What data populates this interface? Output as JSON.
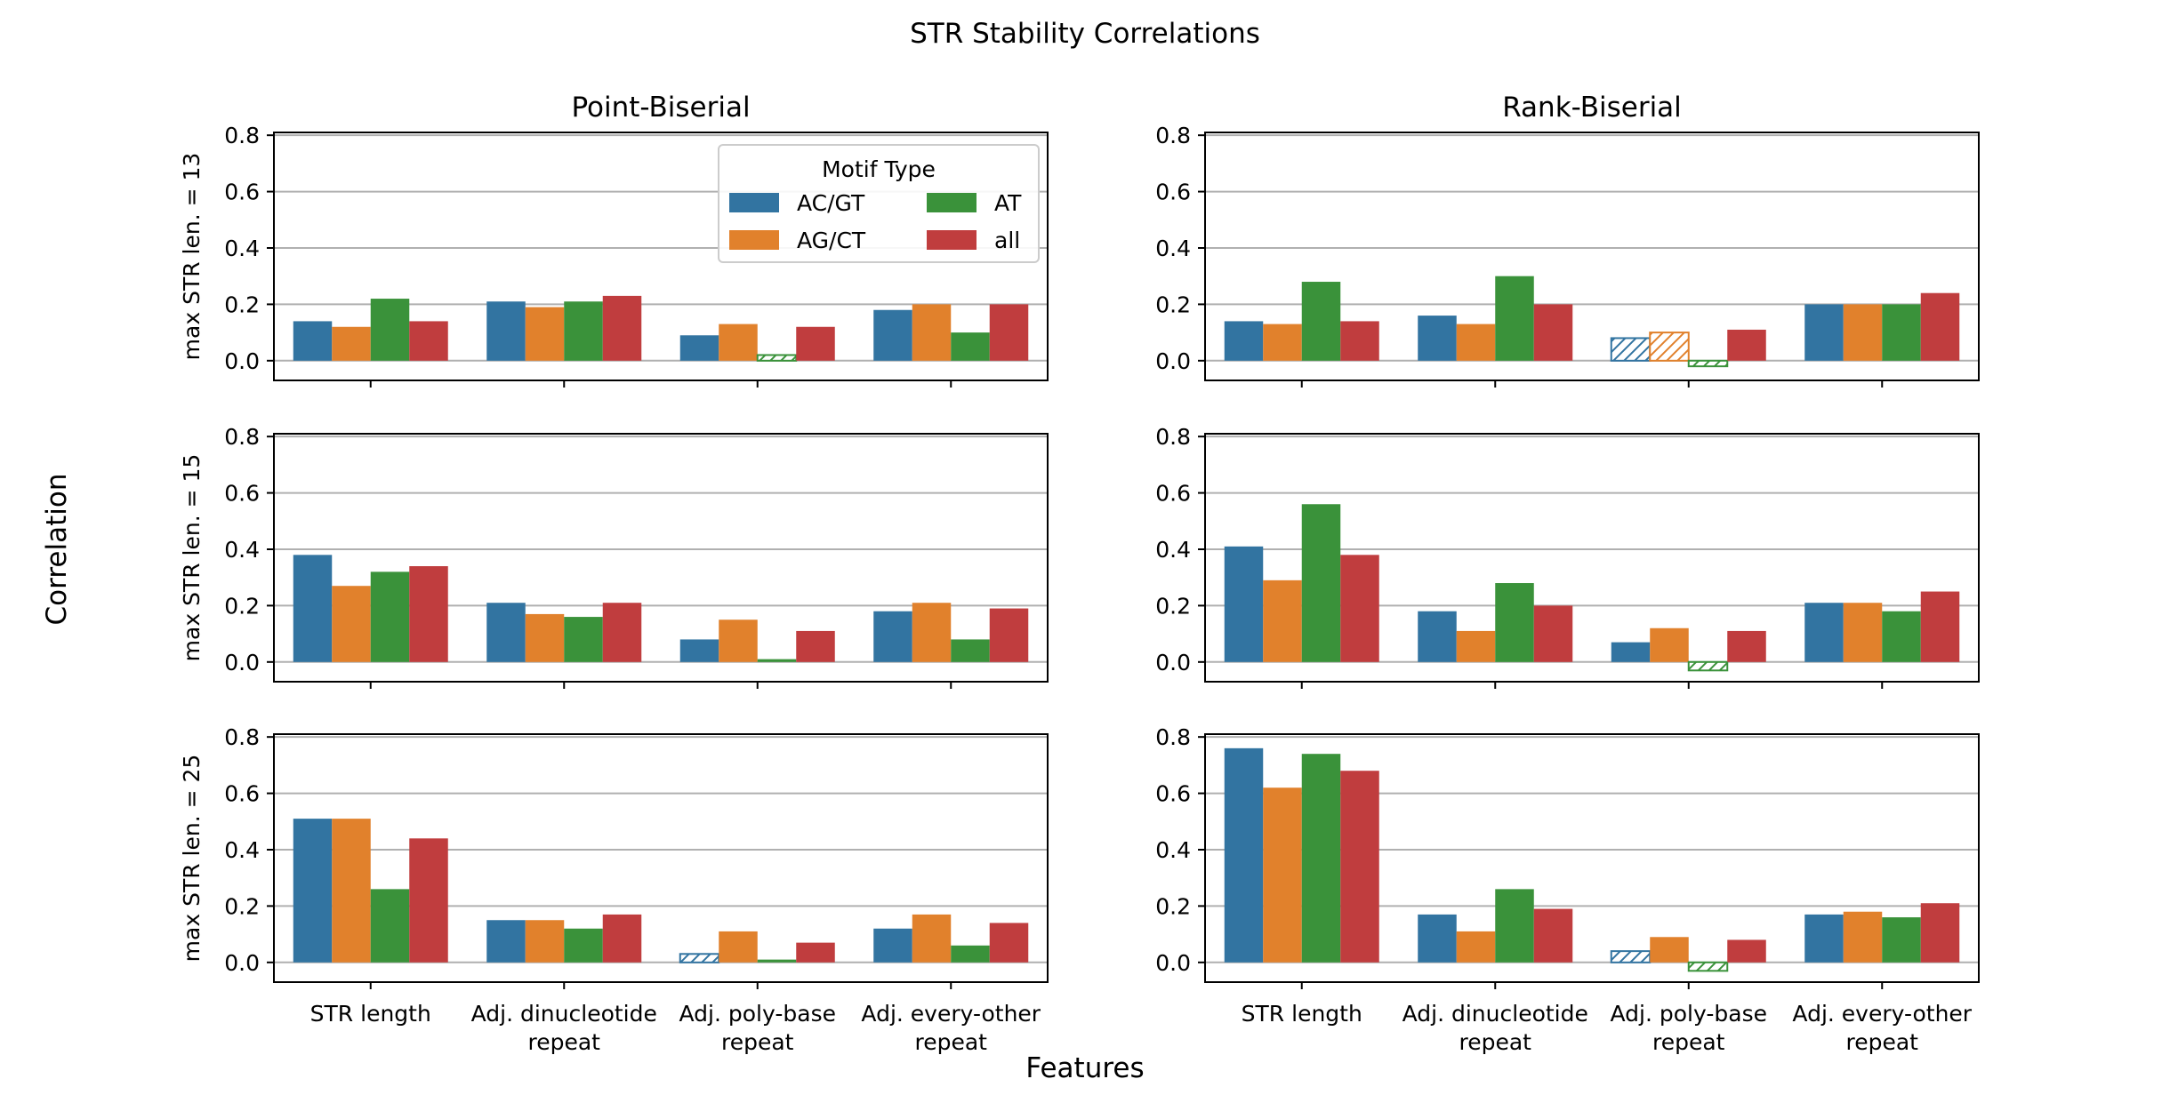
{
  "figure": {
    "title": "STR Stability Correlations",
    "xlabel": "Features",
    "ylabel": "Correlation"
  },
  "legend": {
    "title": "Motif Type",
    "entries": [
      "AC/GT",
      "AG/CT",
      "AT",
      "all"
    ]
  },
  "colors": {
    "AC/GT": "#3274a1",
    "AG/CT": "#e1812c",
    "AT": "#3a923a",
    "all": "#c03d3e",
    "grid": "#b0b0b0",
    "axis": "#000000"
  },
  "chart_data": {
    "type": "bar",
    "style": "grouped bars, 2 columns x 3 rows of subplots, shared x and y axes, horizontal grid on",
    "legend_placement": "top-right of first subplot",
    "categories": [
      "STR length",
      "Adj. dinucleotide\nrepeat",
      "Adj. poly-base\nrepeat",
      "Adj. every-other\nrepeat"
    ],
    "series_names": [
      "AC/GT",
      "AG/CT",
      "AT",
      "all"
    ],
    "ylim": [
      -0.07,
      0.81
    ],
    "yticks": [
      0.0,
      0.2,
      0.4,
      0.6,
      0.8
    ],
    "ytick_labels": [
      "0.0",
      "0.2",
      "0.4",
      "0.6",
      "0.8"
    ],
    "columns": [
      "Point-Biserial",
      "Rank-Biserial"
    ],
    "rows": [
      "max STR len. = 13",
      "max STR len. = 15",
      "max STR len. = 25"
    ],
    "panels": [
      {
        "column": "Point-Biserial",
        "row": "max STR len. = 13",
        "series": [
          {
            "name": "AC/GT",
            "values": [
              0.14,
              0.21,
              0.09,
              0.18
            ],
            "hatched": [
              false,
              false,
              false,
              false
            ]
          },
          {
            "name": "AG/CT",
            "values": [
              0.12,
              0.19,
              0.13,
              0.2
            ],
            "hatched": [
              false,
              false,
              false,
              false
            ]
          },
          {
            "name": "AT",
            "values": [
              0.22,
              0.21,
              0.02,
              0.1
            ],
            "hatched": [
              false,
              false,
              true,
              false
            ]
          },
          {
            "name": "all",
            "values": [
              0.14,
              0.23,
              0.12,
              0.2
            ],
            "hatched": [
              false,
              false,
              false,
              false
            ]
          }
        ]
      },
      {
        "column": "Rank-Biserial",
        "row": "max STR len. = 13",
        "series": [
          {
            "name": "AC/GT",
            "values": [
              0.14,
              0.16,
              0.08,
              0.2
            ],
            "hatched": [
              false,
              false,
              true,
              false
            ]
          },
          {
            "name": "AG/CT",
            "values": [
              0.13,
              0.13,
              0.1,
              0.2
            ],
            "hatched": [
              false,
              false,
              true,
              false
            ]
          },
          {
            "name": "AT",
            "values": [
              0.28,
              0.3,
              -0.02,
              0.2
            ],
            "hatched": [
              false,
              false,
              true,
              false
            ]
          },
          {
            "name": "all",
            "values": [
              0.14,
              0.2,
              0.11,
              0.24
            ],
            "hatched": [
              false,
              false,
              false,
              false
            ]
          }
        ]
      },
      {
        "column": "Point-Biserial",
        "row": "max STR len. = 15",
        "series": [
          {
            "name": "AC/GT",
            "values": [
              0.38,
              0.21,
              0.08,
              0.18
            ],
            "hatched": [
              false,
              false,
              false,
              false
            ]
          },
          {
            "name": "AG/CT",
            "values": [
              0.27,
              0.17,
              0.15,
              0.21
            ],
            "hatched": [
              false,
              false,
              false,
              false
            ]
          },
          {
            "name": "AT",
            "values": [
              0.32,
              0.16,
              0.01,
              0.08
            ],
            "hatched": [
              false,
              false,
              false,
              false
            ]
          },
          {
            "name": "all",
            "values": [
              0.34,
              0.21,
              0.11,
              0.19
            ],
            "hatched": [
              false,
              false,
              false,
              false
            ]
          }
        ]
      },
      {
        "column": "Rank-Biserial",
        "row": "max STR len. = 15",
        "series": [
          {
            "name": "AC/GT",
            "values": [
              0.41,
              0.18,
              0.07,
              0.21
            ],
            "hatched": [
              false,
              false,
              false,
              false
            ]
          },
          {
            "name": "AG/CT",
            "values": [
              0.29,
              0.11,
              0.12,
              0.21
            ],
            "hatched": [
              false,
              false,
              false,
              false
            ]
          },
          {
            "name": "AT",
            "values": [
              0.56,
              0.28,
              -0.03,
              0.18
            ],
            "hatched": [
              false,
              false,
              true,
              false
            ]
          },
          {
            "name": "all",
            "values": [
              0.38,
              0.2,
              0.11,
              0.25
            ],
            "hatched": [
              false,
              false,
              false,
              false
            ]
          }
        ]
      },
      {
        "column": "Point-Biserial",
        "row": "max STR len. = 25",
        "series": [
          {
            "name": "AC/GT",
            "values": [
              0.51,
              0.15,
              0.03,
              0.12
            ],
            "hatched": [
              false,
              false,
              true,
              false
            ]
          },
          {
            "name": "AG/CT",
            "values": [
              0.51,
              0.15,
              0.11,
              0.17
            ],
            "hatched": [
              false,
              false,
              false,
              false
            ]
          },
          {
            "name": "AT",
            "values": [
              0.26,
              0.12,
              0.01,
              0.06
            ],
            "hatched": [
              false,
              false,
              false,
              false
            ]
          },
          {
            "name": "all",
            "values": [
              0.44,
              0.17,
              0.07,
              0.14
            ],
            "hatched": [
              false,
              false,
              false,
              false
            ]
          }
        ]
      },
      {
        "column": "Rank-Biserial",
        "row": "max STR len. = 25",
        "series": [
          {
            "name": "AC/GT",
            "values": [
              0.76,
              0.17,
              0.04,
              0.17
            ],
            "hatched": [
              false,
              false,
              true,
              false
            ]
          },
          {
            "name": "AG/CT",
            "values": [
              0.62,
              0.11,
              0.09,
              0.18
            ],
            "hatched": [
              false,
              false,
              false,
              false
            ]
          },
          {
            "name": "AT",
            "values": [
              0.74,
              0.26,
              -0.03,
              0.16
            ],
            "hatched": [
              false,
              false,
              true,
              false
            ]
          },
          {
            "name": "all",
            "values": [
              0.68,
              0.19,
              0.08,
              0.21
            ],
            "hatched": [
              false,
              false,
              false,
              false
            ]
          }
        ]
      }
    ]
  }
}
